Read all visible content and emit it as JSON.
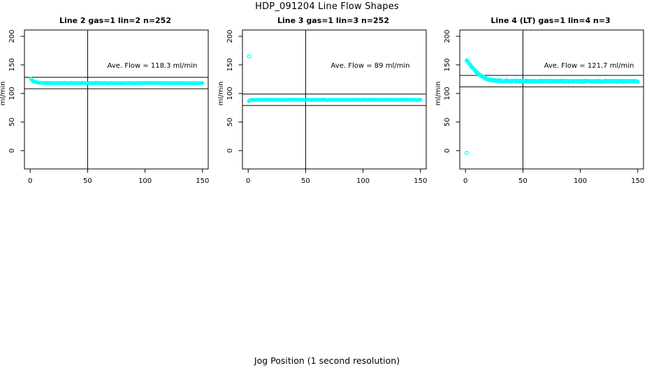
{
  "page": {
    "title": "HDP_091204  Line Flow Shapes",
    "xlabel": "Jog Position (1 second resolution)"
  },
  "colors": {
    "points": "#00ffff",
    "axis": "#000000",
    "background": "#ffffff"
  },
  "chart_data": [
    {
      "type": "scatter",
      "title": "Line 2 gas=1 lin=2 n=252",
      "annotation": "Ave. Flow =  118.3  ml/min",
      "ave_flow_ml_min": 118.3,
      "n": 252,
      "ylabel": "ml/min",
      "x_ticks": [
        0,
        50,
        100,
        150
      ],
      "y_ticks": [
        0,
        50,
        100,
        150,
        200
      ],
      "xlim": [
        -5,
        155
      ],
      "ylim": [
        -32,
        211
      ],
      "vline_x": 50,
      "ref_lines_y": [
        128.3,
        108.3
      ],
      "runs": 1,
      "points_per_run": 252,
      "x_range": [
        0.6,
        150
      ],
      "band_jitter": 0.45,
      "seed": 7,
      "curve_anchors": [
        [
          0.6,
          126
        ],
        [
          1.2,
          124
        ],
        [
          2,
          122.5
        ],
        [
          3,
          121.2
        ],
        [
          4,
          120.4
        ],
        [
          6,
          119.4
        ],
        [
          8,
          118.9
        ],
        [
          12,
          118.5
        ],
        [
          20,
          118.3
        ],
        [
          40,
          118.2
        ],
        [
          150,
          118.2
        ]
      ],
      "outliers": []
    },
    {
      "type": "scatter",
      "title": "Line 3 gas=1 lin=3 n=252",
      "annotation": "Ave. Flow =  89  ml/min",
      "ave_flow_ml_min": 89,
      "n": 252,
      "ylabel": "ml/min",
      "x_ticks": [
        0,
        50,
        100,
        150
      ],
      "y_ticks": [
        0,
        50,
        100,
        150,
        200
      ],
      "xlim": [
        -5,
        155
      ],
      "ylim": [
        -32,
        211
      ],
      "vline_x": 50,
      "ref_lines_y": [
        99,
        79
      ],
      "runs": 1,
      "points_per_run": 252,
      "x_range": [
        0.6,
        150
      ],
      "band_jitter": 0.4,
      "seed": 13,
      "curve_anchors": [
        [
          0.6,
          86.3
        ],
        [
          1.2,
          87.6
        ],
        [
          2.5,
          88.7
        ],
        [
          5,
          89
        ],
        [
          150,
          89
        ]
      ],
      "outliers": [
        [
          0.8,
          165
        ]
      ]
    },
    {
      "type": "scatter",
      "title": "Line 4 (LT) gas=1 lin=4 n=3",
      "annotation": "Ave. Flow =  121.7  ml/min",
      "ave_flow_ml_min": 121.7,
      "n": 3,
      "ylabel": "ml/min",
      "x_ticks": [
        0,
        50,
        100,
        150
      ],
      "y_ticks": [
        0,
        50,
        100,
        150,
        200
      ],
      "xlim": [
        -5,
        155
      ],
      "ylim": [
        -32,
        211
      ],
      "vline_x": 50,
      "ref_lines_y": [
        131.7,
        111.7
      ],
      "runs": 3,
      "points_per_run": 150,
      "x_range": [
        1,
        150
      ],
      "band_jitter": 1.2,
      "seed": 29,
      "curve_anchors": [
        [
          1,
          158
        ],
        [
          2,
          155.5
        ],
        [
          3,
          152.5
        ],
        [
          4,
          150
        ],
        [
          5,
          147.5
        ],
        [
          6,
          145
        ],
        [
          8,
          141
        ],
        [
          10,
          137
        ],
        [
          12,
          133.5
        ],
        [
          15,
          129
        ],
        [
          18,
          126
        ],
        [
          22,
          123.8
        ],
        [
          26,
          122.7
        ],
        [
          32,
          122
        ],
        [
          45,
          121.7
        ],
        [
          70,
          121.5
        ],
        [
          110,
          121.3
        ],
        [
          150,
          121.3
        ]
      ],
      "outliers": [
        [
          1,
          -4
        ]
      ]
    }
  ]
}
